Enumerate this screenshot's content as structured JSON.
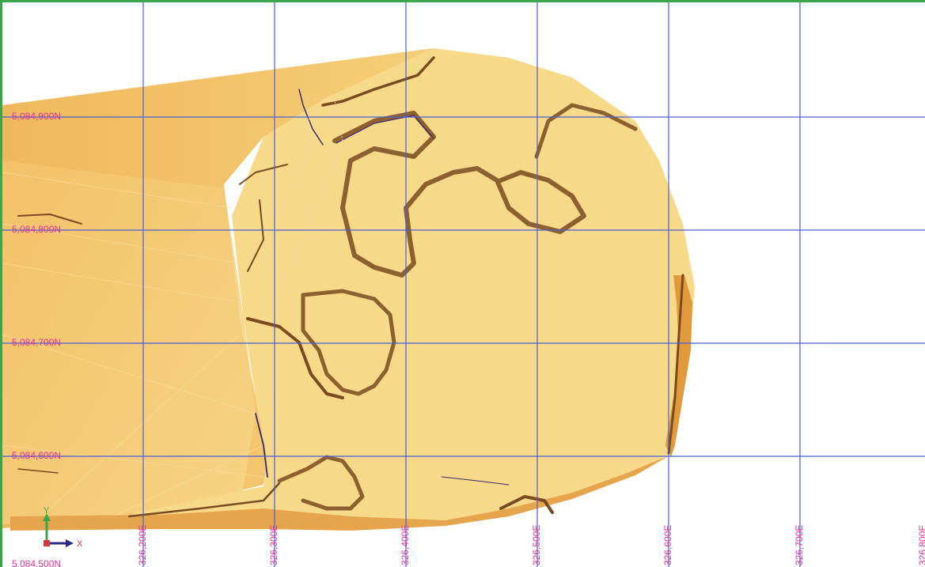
{
  "view": {
    "northing_labels": [
      "5,084,900N",
      "5,084,800N",
      "5,084,700N",
      "5,084,600N",
      "5,084,500N"
    ],
    "easting_labels": [
      "326,200E",
      "326,300E",
      "326,400E",
      "326,500E",
      "326,600E",
      "326,700E",
      "326,800E"
    ],
    "axis_triad": {
      "y_label": "Y",
      "x_label": "X"
    },
    "colors": {
      "frame": "#3aa64a",
      "grid": "#4a5fd6",
      "label": "#e0339a",
      "surface_light": "#f7d98a",
      "surface_mid": "#f2c46a",
      "surface_dark": "#e09a3c",
      "contour": "#7a4a20"
    }
  }
}
